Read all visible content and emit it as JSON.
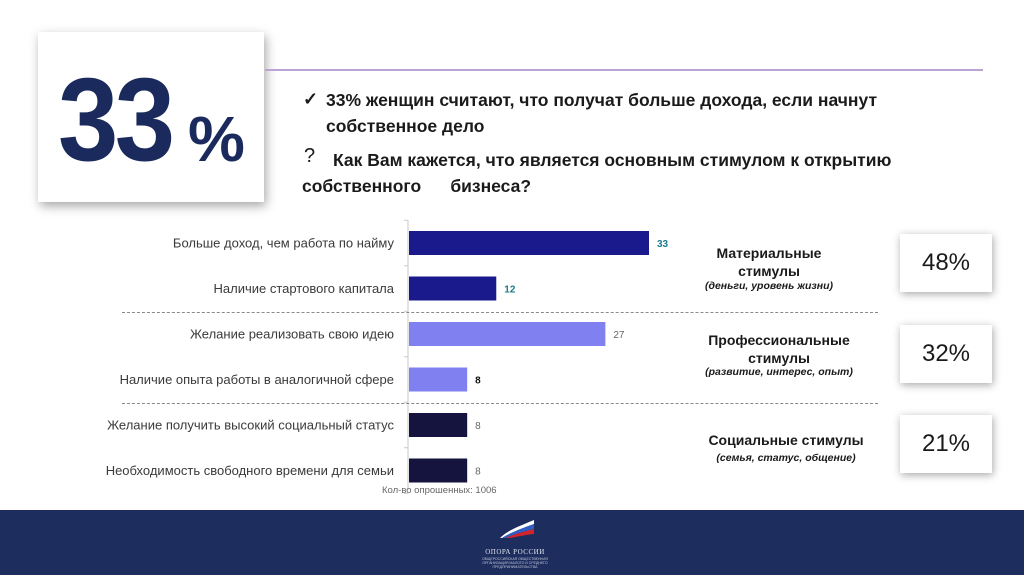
{
  "headline": {
    "big_number": "33",
    "big_percent": "%",
    "statement_mark": "✓",
    "statement_line1": "33% женщин считают, что получат больше дохода, если начнут",
    "statement_line2": "собственное дело",
    "question_mark": "?",
    "question_line1": "Как Вам кажется, что является основным стимулом к открытию",
    "question_line2": "собственного      бизнеса?"
  },
  "chart_data": {
    "type": "bar",
    "orientation": "horizontal",
    "categories": [
      "Больше доход, чем работа по найму",
      "Наличие стартового капитала",
      "Желание реализовать свою идею",
      "Наличие опыта работы в аналогичной сфере",
      "Желание получить высокий социальный статус",
      "Необходимость свободного времени для семьи"
    ],
    "values": [
      33,
      12,
      27,
      8,
      8,
      8
    ],
    "value_labels": [
      "33",
      "12",
      "27",
      "8",
      "8",
      "8"
    ],
    "bar_colors": [
      "#1a1a8c",
      "#1a1a8c",
      "#8080f0",
      "#8080f0",
      "#14143e",
      "#14143e"
    ],
    "label_colors": [
      "#1a7a8a",
      "#1a7a8a",
      "#666666",
      "#111111",
      "#666666",
      "#666666"
    ],
    "label_bold": [
      true,
      true,
      false,
      true,
      false,
      false
    ],
    "xlim": [
      0,
      33
    ],
    "note": "Кол-во опрошенных: 1006"
  },
  "groups": [
    {
      "title": "Материальные стимулы",
      "subtitle": "(деньги, уровень жизни)",
      "percent": "48%"
    },
    {
      "title": "Профессиональные стимулы",
      "subtitle": "(развитие, интерес, опыт)",
      "percent": "32%"
    },
    {
      "title": "Социальные стимулы",
      "subtitle": "(семья, статус, общение)",
      "percent": "21%"
    }
  ],
  "footer": {
    "logo_name": "ОПОРА РОССИИ",
    "logo_caption": "ОБЩЕРОССИЙСКАЯ ОБЩЕСТВЕННАЯ ОРГАНИЗАЦИЯ МАЛОГО И СРЕДНЕГО ПРЕДПРИНИМАТЕЛЬСТВА",
    "colors": {
      "background": "#1d2d5e"
    }
  }
}
